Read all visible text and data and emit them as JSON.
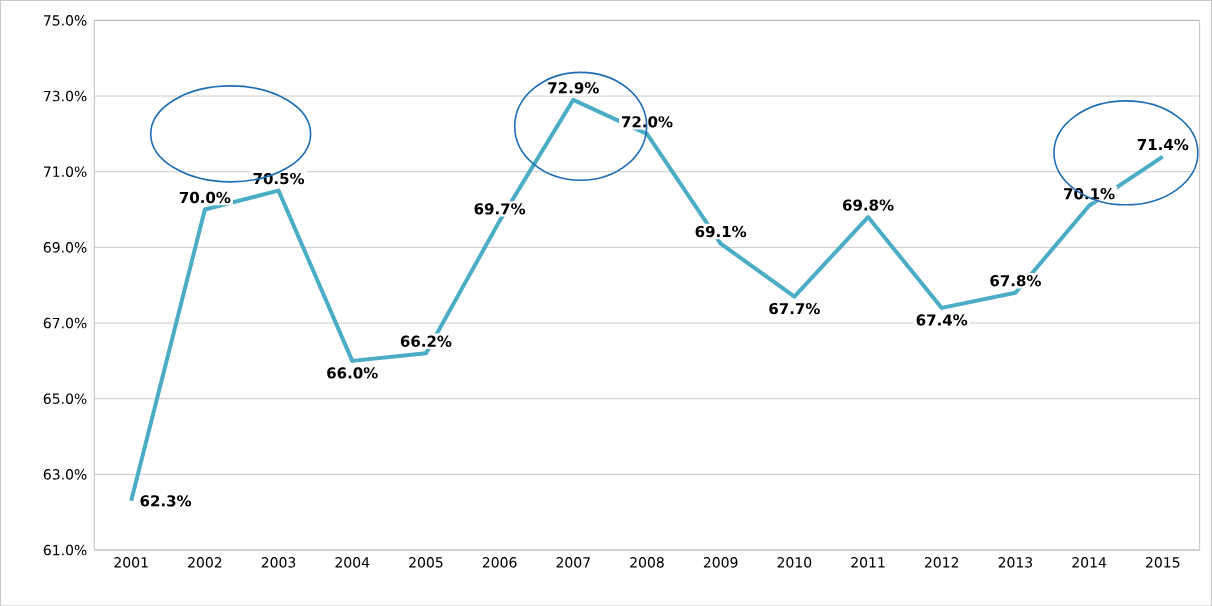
{
  "chart_data": {
    "type": "line",
    "categories": [
      "2001",
      "2002",
      "2003",
      "2004",
      "2005",
      "2006",
      "2007",
      "2008",
      "2009",
      "2010",
      "2011",
      "2012",
      "2013",
      "2014",
      "2015"
    ],
    "series": [
      {
        "color": "#4bacc6",
        "values": [
          62.3,
          70.0,
          70.5,
          66.0,
          66.2,
          69.7,
          72.9,
          72.0,
          69.1,
          67.7,
          69.8,
          67.4,
          67.8,
          70.1,
          71.4
        ],
        "value_labels": [
          "62.3%",
          "70.0%",
          "70.5%",
          "66.0%",
          "66.2%",
          "69.7%",
          "72.9%",
          "72.0%",
          "69.1%",
          "67.7%",
          "69.8%",
          "67.4%",
          "67.8%",
          "70.1%",
          "71.4%"
        ]
      }
    ],
    "ylim": [
      61,
      75
    ],
    "yticks": [
      {
        "value": 61,
        "label": "61.0%"
      },
      {
        "value": 63,
        "label": "63.0%"
      },
      {
        "value": 65,
        "label": "65.0%"
      },
      {
        "value": 67,
        "label": "67.0%"
      },
      {
        "value": 69,
        "label": "69.0%"
      },
      {
        "value": 71,
        "label": "71.0%"
      },
      {
        "value": 73,
        "label": "73.0%"
      },
      {
        "value": 75,
        "label": "75.0%"
      }
    ],
    "grid": "y",
    "marker": "none",
    "line_style": "solid"
  }
}
